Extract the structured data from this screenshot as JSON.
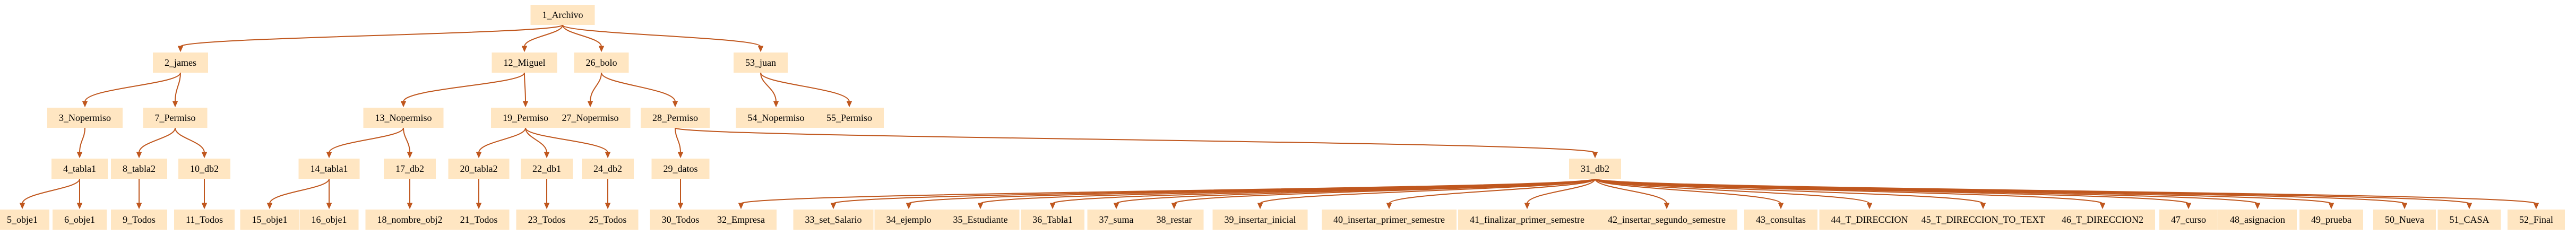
{
  "diagram": {
    "colors": {
      "node_fill": "#ffe6c2",
      "edge": "#c0571e",
      "text": "#000000",
      "background": "#ffffff"
    },
    "nodes": [
      {
        "id": "n1",
        "label": "1_Archivo"
      },
      {
        "id": "n2",
        "label": "2_james"
      },
      {
        "id": "n3",
        "label": "3_Nopermiso"
      },
      {
        "id": "n4",
        "label": "4_tabla1"
      },
      {
        "id": "n5",
        "label": "5_obje1"
      },
      {
        "id": "n6",
        "label": "6_obje1"
      },
      {
        "id": "n7",
        "label": "7_Permiso"
      },
      {
        "id": "n8",
        "label": "8_tabla2"
      },
      {
        "id": "n9",
        "label": "9_Todos"
      },
      {
        "id": "n10",
        "label": "10_db2"
      },
      {
        "id": "n11",
        "label": "11_Todos"
      },
      {
        "id": "n12",
        "label": "12_Miguel"
      },
      {
        "id": "n13",
        "label": "13_Nopermiso"
      },
      {
        "id": "n14",
        "label": "14_tabla1"
      },
      {
        "id": "n15",
        "label": "15_obje1"
      },
      {
        "id": "n16",
        "label": "16_obje1"
      },
      {
        "id": "n17",
        "label": "17_db2"
      },
      {
        "id": "n18",
        "label": "18_nombre_obj2"
      },
      {
        "id": "n19",
        "label": "19_Permiso"
      },
      {
        "id": "n20",
        "label": "20_tabla2"
      },
      {
        "id": "n21",
        "label": "21_Todos"
      },
      {
        "id": "n22",
        "label": "22_db1"
      },
      {
        "id": "n23",
        "label": "23_Todos"
      },
      {
        "id": "n24",
        "label": "24_db2"
      },
      {
        "id": "n25",
        "label": "25_Todos"
      },
      {
        "id": "n26",
        "label": "26_bolo"
      },
      {
        "id": "n27",
        "label": "27_Nopermiso"
      },
      {
        "id": "n28",
        "label": "28_Permiso"
      },
      {
        "id": "n29",
        "label": "29_datos"
      },
      {
        "id": "n30",
        "label": "30_Todos"
      },
      {
        "id": "n31",
        "label": "31_db2"
      },
      {
        "id": "n32",
        "label": "32_Empresa"
      },
      {
        "id": "n33",
        "label": "33_set_Salario"
      },
      {
        "id": "n34",
        "label": "34_ejemplo"
      },
      {
        "id": "n35",
        "label": "35_Estudiante"
      },
      {
        "id": "n36",
        "label": "36_Tabla1"
      },
      {
        "id": "n37",
        "label": "37_suma"
      },
      {
        "id": "n38",
        "label": "38_restar"
      },
      {
        "id": "n39",
        "label": "39_insertar_inicial"
      },
      {
        "id": "n40",
        "label": "40_insertar_primer_semestre"
      },
      {
        "id": "n41",
        "label": "41_finalizar_primer_semestre"
      },
      {
        "id": "n42",
        "label": "42_insertar_segundo_semestre"
      },
      {
        "id": "n43",
        "label": "43_consultas"
      },
      {
        "id": "n44",
        "label": "44_T_DIRECCION"
      },
      {
        "id": "n45",
        "label": "45_T_DIRECCION_TO_TEXT"
      },
      {
        "id": "n46",
        "label": "46_T_DIRECCION2"
      },
      {
        "id": "n47",
        "label": "47_curso"
      },
      {
        "id": "n48",
        "label": "48_asignacion"
      },
      {
        "id": "n49",
        "label": "49_prueba"
      },
      {
        "id": "n50",
        "label": "50_Nueva"
      },
      {
        "id": "n51",
        "label": "51_CASA"
      },
      {
        "id": "n52",
        "label": "52_Final"
      },
      {
        "id": "n53",
        "label": "53_juan"
      },
      {
        "id": "n54",
        "label": "54_Nopermiso"
      },
      {
        "id": "n55",
        "label": "55_Permiso"
      }
    ],
    "edges": [
      {
        "from": "n1",
        "to": "n2"
      },
      {
        "from": "n1",
        "to": "n12"
      },
      {
        "from": "n1",
        "to": "n26"
      },
      {
        "from": "n1",
        "to": "n53"
      },
      {
        "from": "n2",
        "to": "n3"
      },
      {
        "from": "n2",
        "to": "n7"
      },
      {
        "from": "n3",
        "to": "n4"
      },
      {
        "from": "n4",
        "to": "n5"
      },
      {
        "from": "n4",
        "to": "n6"
      },
      {
        "from": "n7",
        "to": "n8"
      },
      {
        "from": "n7",
        "to": "n10"
      },
      {
        "from": "n8",
        "to": "n9"
      },
      {
        "from": "n10",
        "to": "n11"
      },
      {
        "from": "n12",
        "to": "n13"
      },
      {
        "from": "n12",
        "to": "n19"
      },
      {
        "from": "n13",
        "to": "n14"
      },
      {
        "from": "n13",
        "to": "n17"
      },
      {
        "from": "n14",
        "to": "n15"
      },
      {
        "from": "n14",
        "to": "n16"
      },
      {
        "from": "n17",
        "to": "n18"
      },
      {
        "from": "n19",
        "to": "n20"
      },
      {
        "from": "n19",
        "to": "n22"
      },
      {
        "from": "n19",
        "to": "n24"
      },
      {
        "from": "n20",
        "to": "n21"
      },
      {
        "from": "n22",
        "to": "n23"
      },
      {
        "from": "n24",
        "to": "n25"
      },
      {
        "from": "n26",
        "to": "n27"
      },
      {
        "from": "n26",
        "to": "n28"
      },
      {
        "from": "n28",
        "to": "n29"
      },
      {
        "from": "n28",
        "to": "n31"
      },
      {
        "from": "n29",
        "to": "n30"
      },
      {
        "from": "n31",
        "to": "n32"
      },
      {
        "from": "n31",
        "to": "n33"
      },
      {
        "from": "n31",
        "to": "n34"
      },
      {
        "from": "n31",
        "to": "n35"
      },
      {
        "from": "n31",
        "to": "n36"
      },
      {
        "from": "n31",
        "to": "n37"
      },
      {
        "from": "n31",
        "to": "n38"
      },
      {
        "from": "n31",
        "to": "n39"
      },
      {
        "from": "n31",
        "to": "n40"
      },
      {
        "from": "n31",
        "to": "n41"
      },
      {
        "from": "n31",
        "to": "n42"
      },
      {
        "from": "n31",
        "to": "n43"
      },
      {
        "from": "n31",
        "to": "n44"
      },
      {
        "from": "n31",
        "to": "n45"
      },
      {
        "from": "n31",
        "to": "n46"
      },
      {
        "from": "n31",
        "to": "n47"
      },
      {
        "from": "n31",
        "to": "n48"
      },
      {
        "from": "n31",
        "to": "n49"
      },
      {
        "from": "n31",
        "to": "n50"
      },
      {
        "from": "n31",
        "to": "n51"
      },
      {
        "from": "n31",
        "to": "n52"
      },
      {
        "from": "n53",
        "to": "n54"
      },
      {
        "from": "n53",
        "to": "n55"
      }
    ]
  }
}
